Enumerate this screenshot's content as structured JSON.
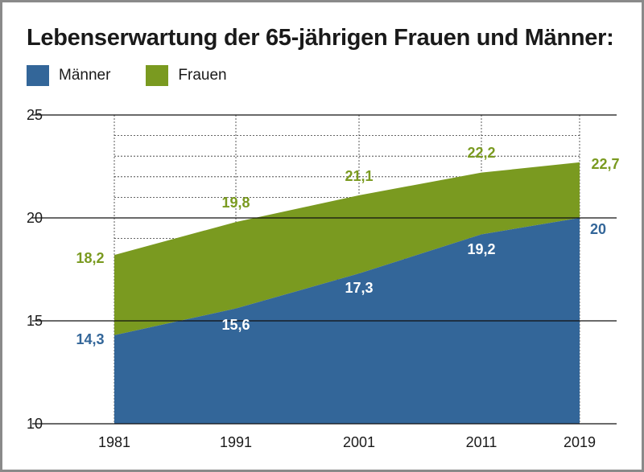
{
  "chart_data": {
    "type": "area",
    "title": "Lebenserwartung der 65-jährigen Frauen und Männer:",
    "xlabel": "",
    "ylabel": "",
    "x": [
      1981,
      1991,
      2001,
      2011,
      2019
    ],
    "x_tick_labels": [
      "1981",
      "1991",
      "2001",
      "2011",
      "2019"
    ],
    "ylim": [
      10,
      25
    ],
    "y_ticks": [
      10,
      15,
      20,
      25
    ],
    "y_tick_labels": [
      "10",
      "15",
      "20",
      "25"
    ],
    "grid": true,
    "legend_position": "top-left",
    "series": [
      {
        "name": "Männer",
        "values": [
          14.3,
          15.6,
          17.3,
          19.2,
          20
        ],
        "labels": [
          "14,3",
          "15,6",
          "17,3",
          "19,2",
          "20"
        ],
        "color": "#336699"
      },
      {
        "name": "Frauen",
        "values": [
          18.2,
          19.8,
          21.1,
          22.2,
          22.7
        ],
        "labels": [
          "18,2",
          "19,8",
          "21,1",
          "22,2",
          "22,7"
        ],
        "color": "#7a9a20"
      }
    ]
  }
}
